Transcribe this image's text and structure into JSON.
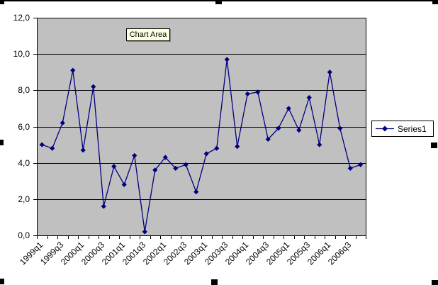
{
  "tooltip": {
    "label": "Chart Area"
  },
  "legend": {
    "series_label": "Series1"
  },
  "colors": {
    "canvas_bg": "#ffffff",
    "plot_area_bg": "#c0c0c0",
    "series_line": "#000080",
    "gridline": "#000000",
    "axis": "#000000",
    "tooltip_bg": "#ffffe1",
    "legend_bg": "#ffffff",
    "selection_handle": "#000000"
  },
  "chart_data": {
    "type": "line",
    "title": "",
    "xlabel": "",
    "ylabel": "",
    "grid": "horizontal",
    "legend_position": "right",
    "plot_bg": "#c0c0c0",
    "ylim": [
      0,
      12
    ],
    "y_tick_step": 2,
    "y_tick_labels": [
      "0,0",
      "2,0",
      "4,0",
      "6,0",
      "8,0",
      "10,0",
      "12,0"
    ],
    "categories": [
      "1999q1",
      "1999q2",
      "1999q3",
      "1999q4",
      "2000q1",
      "2000q2",
      "2000q3",
      "2000q4",
      "2001q1",
      "2001q2",
      "2001q3",
      "2001q4",
      "2002q1",
      "2002q2",
      "2002q3",
      "2002q4",
      "2003q1",
      "2003q2",
      "2003q3",
      "2003q4",
      "2004q1",
      "2004q2",
      "2004q3",
      "2004q4",
      "2005q1",
      "2005q2",
      "2005q3",
      "2005q4",
      "2006q1",
      "2006q2",
      "2006q3",
      "2006q4"
    ],
    "x_tick_labels": [
      "1999q1",
      "1999q3",
      "2000q1",
      "2000q3",
      "2001q1",
      "2001q3",
      "2002q1",
      "2002q3",
      "2003q1",
      "2003q3",
      "2004q1",
      "2004q3",
      "2005q1",
      "2005q3",
      "2006q1",
      "2006q3"
    ],
    "x_tick_label_every": 2,
    "series": [
      {
        "name": "Series1",
        "color": "#000080",
        "marker": "diamond",
        "values": [
          5.0,
          4.8,
          6.2,
          9.1,
          4.7,
          8.2,
          1.6,
          3.8,
          2.8,
          4.4,
          0.2,
          3.6,
          4.3,
          3.7,
          3.9,
          2.4,
          4.5,
          4.8,
          9.7,
          4.9,
          7.8,
          7.9,
          5.3,
          5.9,
          7.0,
          5.8,
          7.6,
          5.0,
          9.0,
          5.9,
          3.7,
          3.9
        ]
      }
    ]
  }
}
